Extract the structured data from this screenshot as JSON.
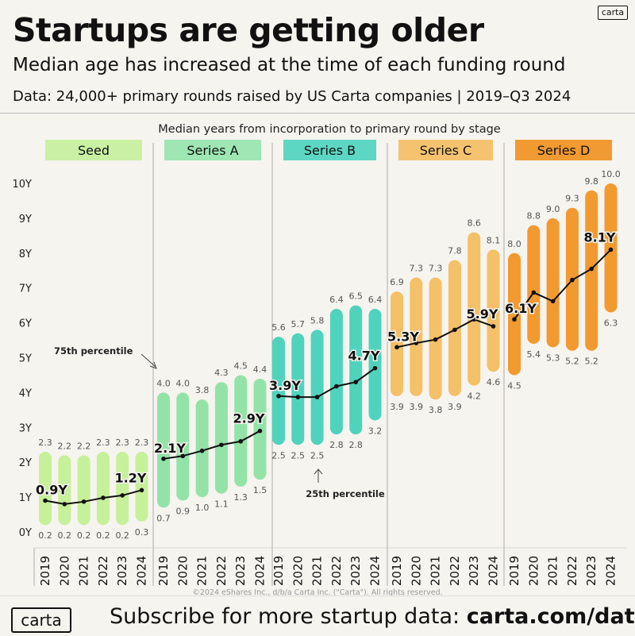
{
  "header": {
    "title": "Startups are getting older",
    "subtitle": "Median age has increased at the time of each funding round",
    "source": "Data: 24,000+ primary rounds raised by US Carta companies | 2019–Q3 2024",
    "logo_small": "carta"
  },
  "footer": {
    "logo": "carta",
    "cta_text": "Subscribe for more startup data: ",
    "cta_link": "carta.com/data",
    "copyright": "©2024 eShares Inc., d/b/a Carta Inc. (\"Carta\"). All rights reserved."
  },
  "chart_data": {
    "type": "range-bar with median line",
    "title": "Median years from incorporation to primary round by stage",
    "y_ticks": [
      "0Y",
      "1Y",
      "2Y",
      "3Y",
      "4Y",
      "5Y",
      "6Y",
      "7Y",
      "8Y",
      "9Y",
      "10Y"
    ],
    "ylim": [
      0,
      10.5
    ],
    "years": [
      "2019",
      "2020",
      "2021",
      "2022",
      "2023",
      "2024"
    ],
    "annotations": {
      "p75": "75th percentile",
      "p25": "25th percentile"
    },
    "colors": {
      "Seed": "#c6f09a",
      "Series A": "#93e3a8",
      "Series B": "#4fd3bd",
      "Series C": "#f4c068",
      "Series D": "#f29a30",
      "Seed_header": "#c9f0a3",
      "Series A_header": "#9ee6b3",
      "Series B_header": "#5ed6c4",
      "Series C_header": "#f5c370",
      "Series D_header": "#f19a32",
      "line": "#111111"
    },
    "series": [
      {
        "name": "Seed",
        "p25": [
          0.2,
          0.2,
          0.2,
          0.2,
          0.2,
          0.3
        ],
        "p75": [
          2.3,
          2.2,
          2.2,
          2.3,
          2.3,
          2.3
        ],
        "median": [
          0.9,
          0.8,
          0.87,
          0.98,
          1.05,
          1.2
        ],
        "median_labels": [
          "0.9Y",
          "",
          "",
          "",
          "",
          "1.2Y"
        ]
      },
      {
        "name": "Series A",
        "p25": [
          0.7,
          0.9,
          1.0,
          1.1,
          1.3,
          1.5
        ],
        "p75": [
          4.0,
          4.0,
          3.8,
          4.3,
          4.5,
          4.4
        ],
        "median": [
          2.1,
          2.18,
          2.33,
          2.5,
          2.6,
          2.9
        ],
        "median_labels": [
          "2.1Y",
          "",
          "",
          "",
          "",
          "2.9Y"
        ]
      },
      {
        "name": "Series B",
        "p25": [
          2.5,
          2.5,
          2.5,
          2.8,
          2.8,
          3.2
        ],
        "p75": [
          5.6,
          5.7,
          5.8,
          6.4,
          6.5,
          6.4
        ],
        "median": [
          3.9,
          3.87,
          3.87,
          4.18,
          4.3,
          4.7
        ],
        "median_labels": [
          "3.9Y",
          "",
          "",
          "",
          "",
          "4.7Y"
        ]
      },
      {
        "name": "Series C",
        "p25": [
          3.9,
          3.9,
          3.8,
          3.9,
          4.2,
          4.6
        ],
        "p75": [
          6.9,
          7.3,
          7.3,
          7.8,
          8.6,
          8.1
        ],
        "median": [
          5.3,
          5.42,
          5.52,
          5.8,
          6.1,
          5.9
        ],
        "median_labels": [
          "5.3Y",
          "",
          "",
          "",
          "",
          "5.9Y"
        ]
      },
      {
        "name": "Series D",
        "p25": [
          4.5,
          5.4,
          5.3,
          5.2,
          5.2,
          6.3
        ],
        "p75": [
          8.0,
          8.8,
          9.0,
          9.3,
          9.8,
          10.0
        ],
        "median": [
          6.1,
          6.87,
          6.62,
          7.23,
          7.55,
          8.1
        ],
        "median_labels": [
          "6.1Y",
          "",
          "",
          "",
          "",
          "8.1Y"
        ]
      }
    ]
  }
}
